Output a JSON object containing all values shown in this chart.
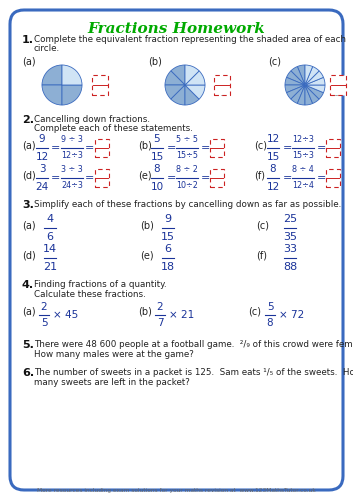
{
  "title": "Fractions Homework",
  "title_color": "#00aa00",
  "border_color": "#3a6abf",
  "bg_color": "#ffffff",
  "dark_blue": "#1a3399",
  "red_dashed": "#cc2222",
  "footer": "More resources including exam solutions for your maths revision at  www.123MathsTutor.co.uk",
  "section1_text1": "Complete the equivalent fraction representing the shaded area of each",
  "section1_text2": "circle.",
  "section2_text1": "Cancelling down fractions.",
  "section2_text2": "Complete each of these statements.",
  "section3_text": "Simplify each of these fractions by cancelling down as far as possible.",
  "section4_text1": "Finding fractions of a quantity.",
  "section4_text2": "Calculate these fractions.",
  "circle_a_slices": 4,
  "circle_a_shaded": 3,
  "circle_b_slices": 8,
  "circle_b_shaded": 5,
  "circle_c_slices": 16,
  "circle_c_shaded": 11
}
